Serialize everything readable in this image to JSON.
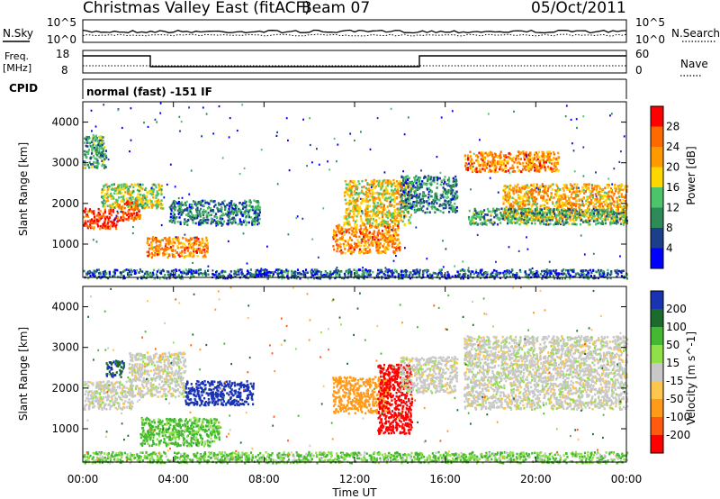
{
  "header": {
    "station": "Christmas Valley East (fitACF)",
    "beam": "Beam 07",
    "date": "05/Oct/2011",
    "nsky_label": "N.Sky",
    "nsearch_label": "N.Search",
    "freq_label": "Freq.",
    "freq_unit": "[MHz]",
    "nave_label": "Nave",
    "cpid_label": "CPID",
    "cpid_value": "normal (fast) -151 IF",
    "noise_ticks": [
      "10^5",
      "10^0"
    ],
    "freq_ticks": [
      "18",
      "8"
    ],
    "nave_ticks": [
      "60",
      "0"
    ]
  },
  "chart_data": [
    {
      "type": "heatmap",
      "name": "power",
      "ylabel": "Slant Range [km]",
      "xlabel": "Time UT",
      "yticks": [
        "4000",
        "3000",
        "2000",
        "1000"
      ],
      "ylim": [
        180,
        4500
      ],
      "xlim": [
        0,
        24
      ],
      "colorbar": {
        "label": "Power [dB]",
        "ticks": [
          "28",
          "24",
          "20",
          "16",
          "12",
          "8",
          "4"
        ],
        "colors": [
          "#ff0000",
          "#ff6a00",
          "#ff9900",
          "#ffd700",
          "#4dc46a",
          "#2e8b57",
          "#1b3f8b",
          "#0000ff"
        ]
      },
      "echo_regions": [
        {
          "t": [
            0.0,
            1.5
          ],
          "range": [
            1400,
            1900
          ],
          "level": 26
        },
        {
          "t": [
            0.8,
            3.5
          ],
          "range": [
            1900,
            2500
          ],
          "level": 16
        },
        {
          "t": [
            1.5,
            2.5
          ],
          "range": [
            1600,
            2100
          ],
          "level": 24
        },
        {
          "t": [
            2.8,
            5.5
          ],
          "range": [
            700,
            1200
          ],
          "level": 22
        },
        {
          "t": [
            3.8,
            7.8
          ],
          "range": [
            1500,
            2100
          ],
          "level": 10
        },
        {
          "t": [
            0.0,
            1.0
          ],
          "range": [
            2900,
            3700
          ],
          "level": 12
        },
        {
          "t": [
            11.0,
            14.0
          ],
          "range": [
            800,
            1500
          ],
          "level": 22
        },
        {
          "t": [
            11.5,
            14.5
          ],
          "range": [
            1500,
            2600
          ],
          "level": 18
        },
        {
          "t": [
            14.0,
            16.5
          ],
          "range": [
            1800,
            2700
          ],
          "level": 10
        },
        {
          "t": [
            16.8,
            21.0
          ],
          "range": [
            2800,
            3300
          ],
          "level": 22
        },
        {
          "t": [
            18.5,
            24.0
          ],
          "range": [
            1600,
            2500
          ],
          "level": 20
        },
        {
          "t": [
            17.0,
            24.0
          ],
          "range": [
            1500,
            1900
          ],
          "level": 12
        },
        {
          "t": [
            0.0,
            24.0
          ],
          "range": [
            180,
            400
          ],
          "level": 8
        }
      ]
    },
    {
      "type": "heatmap",
      "name": "velocity",
      "ylabel": "Slant Range [km]",
      "xlabel": "Time UT",
      "yticks": [
        "4000",
        "3000",
        "2000",
        "1000"
      ],
      "xticks": [
        "00:00",
        "04:00",
        "08:00",
        "12:00",
        "16:00",
        "20:00",
        "00:00"
      ],
      "ylim": [
        180,
        4500
      ],
      "xlim": [
        0,
        24
      ],
      "colorbar": {
        "label": "Velocity [m s^-1]",
        "ticks": [
          "200",
          "100",
          "50",
          "15",
          "-15",
          "-50",
          "-100",
          "-200"
        ],
        "colors": [
          "#1a33b3",
          "#1b6b2d",
          "#44b830",
          "#90e04a",
          "#c8c8c8",
          "#ffc64d",
          "#ff9a1a",
          "#ff5a10",
          "#ff0000"
        ]
      },
      "echo_regions": [
        {
          "t": [
            0.0,
            2.2
          ],
          "range": [
            1500,
            2200
          ],
          "vel": 0
        },
        {
          "t": [
            2.0,
            4.5
          ],
          "range": [
            1800,
            2900
          ],
          "vel": 0
        },
        {
          "t": [
            1.0,
            1.8
          ],
          "range": [
            2300,
            2700
          ],
          "vel": 150
        },
        {
          "t": [
            2.5,
            6.0
          ],
          "range": [
            600,
            1300
          ],
          "vel": 40
        },
        {
          "t": [
            4.5,
            7.5
          ],
          "range": [
            1600,
            2200
          ],
          "vel": 180
        },
        {
          "t": [
            11.0,
            13.5
          ],
          "range": [
            1400,
            2300
          ],
          "vel": -80
        },
        {
          "t": [
            13.0,
            14.5
          ],
          "range": [
            900,
            2600
          ],
          "vel": -200
        },
        {
          "t": [
            14.0,
            16.5
          ],
          "range": [
            1900,
            2800
          ],
          "vel": 0
        },
        {
          "t": [
            16.8,
            24.0
          ],
          "range": [
            1500,
            3300
          ],
          "vel": 0
        },
        {
          "t": [
            0.0,
            24.0
          ],
          "range": [
            180,
            450
          ],
          "vel": 30
        }
      ]
    }
  ]
}
